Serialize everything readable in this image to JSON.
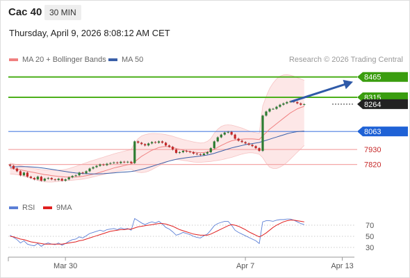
{
  "header": {
    "instrument": "Cac 40",
    "timeframe": "30 MIN",
    "datetime": "Thursday, April 9, 2026 8:08:12 AM CET"
  },
  "legend": {
    "ma20": "MA 20 + Bollinger Bands",
    "ma50": "MA 50",
    "copyright": "Research © 2026 Trading Central"
  },
  "colors": {
    "ma20": "#f08080",
    "ma50": "#3a5fa8",
    "bull": "#2e7d32",
    "bear": "#c62828",
    "resistance": "#4caf1a",
    "support_blue": "#4d7fe0",
    "support_red": "#f4a7a7",
    "current": "#222222",
    "arrow": "#2f5aa8",
    "rsi": "#5b7fd6",
    "rsi_ma": "#e02020"
  },
  "levels": [
    {
      "value": 8465,
      "label": "8465",
      "kind": "resistance"
    },
    {
      "value": 8315,
      "label": "8315",
      "kind": "resistance"
    },
    {
      "value": 8264,
      "label": "8264",
      "kind": "current"
    },
    {
      "value": 8063,
      "label": "8063",
      "kind": "pivot"
    },
    {
      "value": 7930,
      "label": "7930",
      "kind": "support"
    },
    {
      "value": 7820,
      "label": "7820",
      "kind": "support"
    }
  ],
  "chart_data": {
    "type": "candlestick",
    "x_tick_labels": [
      "Mar 30",
      "Apr 7",
      "Apr 13"
    ],
    "x_tick_index": [
      16,
      68,
      96
    ],
    "n_slots": 100,
    "ylim": [
      7690,
      8530
    ],
    "closes": [
      7810,
      7790,
      7770,
      7740,
      7760,
      7730,
      7720,
      7710,
      7730,
      7700,
      7715,
      7720,
      7710,
      7705,
      7715,
      7700,
      7710,
      7725,
      7735,
      7740,
      7760,
      7755,
      7770,
      7790,
      7800,
      7810,
      7820,
      7815,
      7825,
      7830,
      7835,
      7830,
      7840,
      7835,
      7840,
      7830,
      7990,
      7980,
      7970,
      7960,
      7975,
      7985,
      7980,
      7990,
      7980,
      7960,
      7950,
      7930,
      7905,
      7910,
      7920,
      7915,
      7910,
      7900,
      7895,
      7890,
      7900,
      7910,
      7940,
      7990,
      8020,
      8040,
      8055,
      8060,
      8040,
      8010,
      7995,
      7985,
      7975,
      7965,
      7955,
      7940,
      7920,
      8180,
      8210,
      8230,
      8230,
      8245,
      8260,
      8270,
      8280,
      8285,
      8280,
      8270,
      8260,
      8264
    ],
    "ma20": [
      7790,
      7788,
      7785,
      7780,
      7775,
      7770,
      7765,
      7760,
      7755,
      7750,
      7745,
      7742,
      7738,
      7735,
      7732,
      7730,
      7728,
      7727,
      7727,
      7728,
      7730,
      7733,
      7737,
      7742,
      7748,
      7755,
      7762,
      7770,
      7778,
      7786,
      7794,
      7800,
      7806,
      7812,
      7818,
      7822,
      7840,
      7860,
      7880,
      7895,
      7910,
      7925,
      7935,
      7945,
      7950,
      7952,
      7950,
      7945,
      7938,
      7932,
      7926,
      7920,
      7915,
      7910,
      7908,
      7906,
      7908,
      7912,
      7920,
      7932,
      7946,
      7960,
      7972,
      7984,
      7994,
      8000,
      8004,
      8006,
      8008,
      8008,
      8008,
      8006,
      8004,
      8030,
      8055,
      8080,
      8100,
      8120,
      8140,
      8160,
      8180,
      8200,
      8215,
      8230,
      8240,
      8248
    ],
    "ma50": [
      7800,
      7802,
      7803,
      7804,
      7804,
      7803,
      7802,
      7800,
      7798,
      7795,
      7792,
      7788,
      7784,
      7780,
      7776,
      7772,
      7768,
      7764,
      7760,
      7757,
      7755,
      7753,
      7752,
      7751,
      7750,
      7750,
      7751,
      7752,
      7754,
      7756,
      7758,
      7760,
      7762,
      7764,
      7766,
      7768,
      7772,
      7778,
      7784,
      7790,
      7798,
      7806,
      7814,
      7822,
      7830,
      7838,
      7845,
      7852,
      7858,
      7862,
      7866,
      7870,
      7873,
      7876,
      7879,
      7882,
      7886,
      7890,
      7895,
      7902,
      7910,
      7918,
      7926,
      7934,
      7942,
      7948,
      7954,
      7960,
      7966,
      7970,
      7974,
      7978,
      7982,
      7990,
      7998,
      8006,
      8014,
      8022,
      8030,
      8038,
      8046,
      8052,
      8058,
      8062,
      8064,
      8066
    ],
    "bb_upper": [
      7830,
      7825,
      7818,
      7812,
      7806,
      7800,
      7795,
      7790,
      7786,
      7782,
      7780,
      7778,
      7777,
      7777,
      7778,
      7780,
      7784,
      7790,
      7798,
      7806,
      7815,
      7824,
      7833,
      7842,
      7850,
      7858,
      7866,
      7874,
      7882,
      7890,
      7898,
      7905,
      7912,
      7918,
      7924,
      7930,
      7980,
      8010,
      8030,
      8040,
      8045,
      8048,
      8048,
      8046,
      8044,
      8040,
      8034,
      8028,
      8020,
      8012,
      8004,
      7998,
      7992,
      7986,
      7982,
      7978,
      7980,
      7990,
      8010,
      8050,
      8080,
      8100,
      8110,
      8112,
      8110,
      8104,
      8096,
      8088,
      8078,
      8068,
      8060,
      8054,
      8050,
      8250,
      8320,
      8380,
      8420,
      8450,
      8470,
      8480,
      8482,
      8478,
      8470,
      8460,
      8450,
      8440
    ],
    "bb_lower": [
      7750,
      7748,
      7745,
      7740,
      7733,
      7725,
      7718,
      7710,
      7702,
      7696,
      7692,
      7690,
      7690,
      7692,
      7695,
      7698,
      7700,
      7702,
      7704,
      7706,
      7708,
      7712,
      7716,
      7722,
      7728,
      7734,
      7740,
      7746,
      7752,
      7758,
      7764,
      7770,
      7774,
      7778,
      7782,
      7786,
      7770,
      7762,
      7760,
      7762,
      7770,
      7782,
      7796,
      7810,
      7824,
      7836,
      7846,
      7852,
      7856,
      7854,
      7850,
      7846,
      7842,
      7838,
      7836,
      7836,
      7838,
      7840,
      7842,
      7846,
      7850,
      7854,
      7860,
      7866,
      7872,
      7880,
      7888,
      7896,
      7902,
      7906,
      7906,
      7902,
      7895,
      7870,
      7830,
      7800,
      7790,
      7790,
      7800,
      7815,
      7835,
      7860,
      7885,
      7910,
      7935,
      7960
    ],
    "rsi": [
      52,
      48,
      44,
      38,
      42,
      36,
      34,
      33,
      37,
      32,
      36,
      38,
      36,
      35,
      38,
      34,
      37,
      41,
      44,
      45,
      49,
      47,
      51,
      55,
      57,
      59,
      61,
      59,
      62,
      63,
      64,
      62,
      65,
      63,
      64,
      61,
      82,
      78,
      74,
      71,
      74,
      76,
      74,
      77,
      72,
      66,
      63,
      58,
      52,
      54,
      57,
      55,
      53,
      50,
      48,
      47,
      51,
      54,
      61,
      69,
      73,
      75,
      77,
      77,
      70,
      61,
      57,
      54,
      51,
      48,
      45,
      42,
      37,
      76,
      78,
      78,
      77,
      79,
      80,
      80,
      81,
      81,
      79,
      76,
      73,
      71
    ],
    "rsi_ma": [
      50,
      49,
      47,
      45,
      44,
      42,
      40,
      39,
      38,
      37,
      36,
      36,
      36,
      36,
      36,
      36,
      37,
      38,
      39,
      40,
      42,
      43,
      45,
      47,
      49,
      51,
      53,
      55,
      57,
      59,
      60,
      61,
      62,
      62,
      63,
      63,
      65,
      67,
      68,
      69,
      70,
      71,
      72,
      73,
      73,
      72,
      70,
      68,
      65,
      62,
      60,
      58,
      56,
      54,
      53,
      52,
      52,
      52,
      54,
      57,
      60,
      63,
      66,
      69,
      71,
      70,
      68,
      65,
      62,
      58,
      55,
      52,
      49,
      52,
      56,
      61,
      66,
      70,
      73,
      76,
      78,
      79,
      79,
      78,
      77,
      76
    ],
    "rsi_legend": [
      "RSI",
      "9MA"
    ],
    "rsi_levels": [
      70,
      50,
      30
    ],
    "rsi_ylim": [
      20,
      85
    ]
  }
}
